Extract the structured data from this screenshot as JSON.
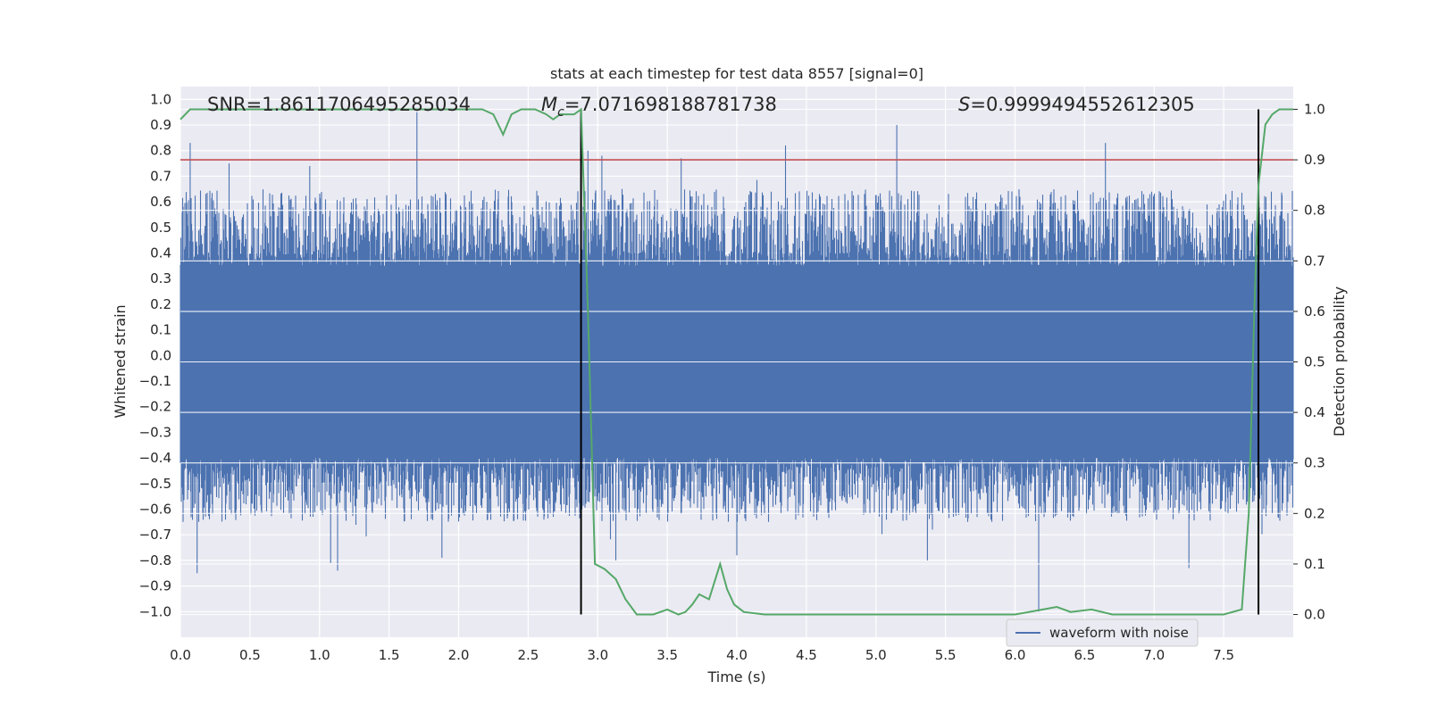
{
  "chart_data": {
    "type": "line",
    "title": "stats at each timestep for test data 8557 [signal=0]",
    "xlabel": "Time (s)",
    "ylabel": "Whitened strain",
    "y2label": "Detection probability",
    "xlim": [
      0,
      8.0
    ],
    "ylim": [
      -1.1,
      1.05
    ],
    "y2lim": [
      -0.045,
      1.045
    ],
    "x_ticks": [
      "0.0",
      "0.5",
      "1.0",
      "1.5",
      "2.0",
      "2.5",
      "3.0",
      "3.5",
      "4.0",
      "4.5",
      "5.0",
      "5.5",
      "6.0",
      "6.5",
      "7.0",
      "7.5"
    ],
    "y_ticks": [
      "1.0",
      "0.9",
      "0.8",
      "0.7",
      "0.6",
      "0.5",
      "0.4",
      "0.3",
      "0.2",
      "0.1",
      "0.0",
      "−0.1",
      "−0.2",
      "−0.3",
      "−0.4",
      "−0.5",
      "−0.6",
      "−0.7",
      "−0.8",
      "−0.9",
      "−1.0"
    ],
    "y2_ticks": [
      "1.0",
      "0.9",
      "0.8",
      "0.7",
      "0.6",
      "0.5",
      "0.4",
      "0.3",
      "0.2",
      "0.1",
      "0.0"
    ],
    "grid": true,
    "legend_position": "lower-right",
    "annotations": {
      "snr": "SNR=1.8611706495285034",
      "mc_symbol": "M",
      "mc_sub": "c",
      "mc_value": "=7.071698188781738",
      "s_symbol": "S",
      "s_value": "=0.9999494552612305"
    },
    "threshold_y2": 0.9,
    "vertical_markers_x": [
      2.88,
      7.75
    ],
    "series": [
      {
        "name": "waveform with noise",
        "color": "#4c72b0",
        "kind": "noise_strain",
        "x_range": [
          0.0,
          8.0
        ],
        "core_band": [
          -0.4,
          0.35
        ],
        "typical_peak_band": [
          -0.65,
          0.65
        ],
        "peaks": [
          {
            "x": 0.07,
            "y": 0.83
          },
          {
            "x": 0.35,
            "y": 0.75
          },
          {
            "x": 0.93,
            "y": 0.74
          },
          {
            "x": 1.7,
            "y": 0.95
          },
          {
            "x": 2.93,
            "y": 0.8
          },
          {
            "x": 3.03,
            "y": 0.78
          },
          {
            "x": 3.6,
            "y": 0.77
          },
          {
            "x": 4.35,
            "y": 0.82
          },
          {
            "x": 5.15,
            "y": 0.9
          },
          {
            "x": 6.65,
            "y": 0.83
          },
          {
            "x": 0.12,
            "y": -0.85
          },
          {
            "x": 1.08,
            "y": -0.81
          },
          {
            "x": 1.13,
            "y": -0.84
          },
          {
            "x": 1.88,
            "y": -0.79
          },
          {
            "x": 3.13,
            "y": -0.8
          },
          {
            "x": 4.0,
            "y": -0.78
          },
          {
            "x": 5.37,
            "y": -0.8
          },
          {
            "x": 6.17,
            "y": -1.0
          },
          {
            "x": 7.25,
            "y": -0.83
          }
        ]
      },
      {
        "name": "",
        "color": "#55a868",
        "kind": "line",
        "x": [
          0.0,
          0.07,
          0.3,
          0.6,
          1.0,
          1.5,
          2.0,
          2.17,
          2.25,
          2.32,
          2.38,
          2.45,
          2.55,
          2.63,
          2.68,
          2.73,
          2.78,
          2.83,
          2.88,
          2.93,
          2.98,
          3.05,
          3.13,
          3.2,
          3.28,
          3.4,
          3.5,
          3.58,
          3.63,
          3.68,
          3.73,
          3.8,
          3.88,
          3.93,
          3.98,
          4.05,
          4.2,
          4.5,
          5.0,
          5.5,
          6.0,
          6.2,
          6.3,
          6.4,
          6.55,
          6.7,
          7.0,
          7.5,
          7.63,
          7.68,
          7.72,
          7.75,
          7.8,
          7.85,
          7.9,
          7.95,
          8.0
        ],
        "values": [
          0.98,
          1.0,
          1.0,
          1.0,
          1.0,
          1.0,
          1.0,
          1.0,
          0.99,
          0.95,
          0.99,
          1.0,
          1.0,
          0.99,
          0.98,
          0.99,
          0.99,
          0.99,
          1.0,
          0.6,
          0.1,
          0.09,
          0.07,
          0.03,
          0.0,
          0.0,
          0.01,
          0.0,
          0.005,
          0.02,
          0.04,
          0.03,
          0.1,
          0.05,
          0.02,
          0.005,
          0.0,
          0.0,
          0.0,
          0.0,
          0.0,
          0.01,
          0.015,
          0.005,
          0.01,
          0.0,
          0.0,
          0.0,
          0.01,
          0.2,
          0.6,
          0.85,
          0.97,
          0.99,
          1.0,
          1.0,
          1.0
        ]
      }
    ]
  }
}
